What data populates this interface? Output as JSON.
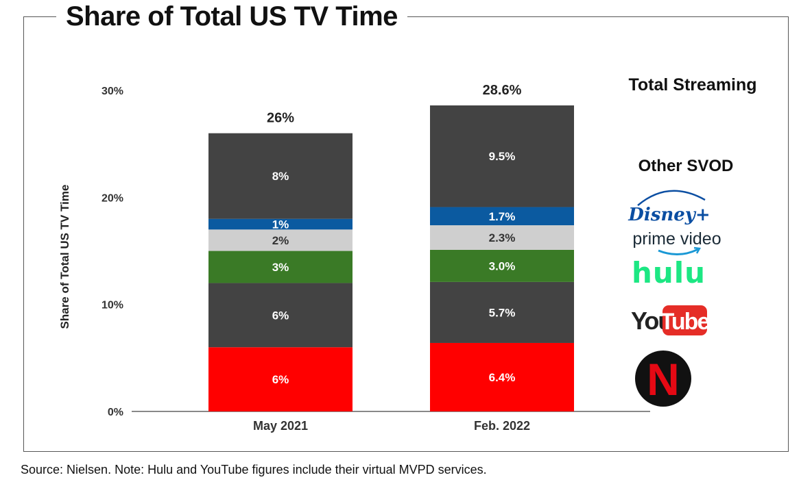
{
  "title": "Share of Total US TV Time",
  "source_note": "Source: Nielsen. Note: Hulu and YouTube figures include their virtual MVPD services.",
  "legend": {
    "header": "Total Streaming",
    "other_svod": "Other SVOD",
    "disney": "Disney+",
    "prime": "prime video",
    "hulu": "hulu",
    "youtube_you": "You",
    "youtube_tube": "Tube",
    "netflix": "N"
  },
  "chart_data": {
    "type": "bar",
    "stacked": true,
    "title": "Share of Total US TV Time",
    "xlabel": "",
    "ylabel": "Share of Total US TV Time",
    "ylim": [
      0,
      30
    ],
    "yticks": [
      0,
      10,
      20,
      30
    ],
    "ytick_labels": [
      "0%",
      "10%",
      "20%",
      "30%"
    ],
    "categories": [
      "May 2021",
      "Feb. 2022"
    ],
    "totals": [
      26,
      28.6
    ],
    "total_labels": [
      "26%",
      "28.6%"
    ],
    "series": [
      {
        "name": "Netflix",
        "color": "#ff0000",
        "label_color": "#ffffff",
        "values": [
          6,
          6.4
        ],
        "labels": [
          "6%",
          "6.4%"
        ]
      },
      {
        "name": "YouTube",
        "color": "#434343",
        "label_color": "#ffffff",
        "values": [
          6,
          5.7
        ],
        "labels": [
          "6%",
          "5.7%"
        ]
      },
      {
        "name": "Hulu",
        "color": "#3a7a26",
        "label_color": "#ffffff",
        "values": [
          3,
          3.0
        ],
        "labels": [
          "3%",
          "3.0%"
        ]
      },
      {
        "name": "Prime Video",
        "color": "#cfcfcf",
        "label_color": "#333333",
        "values": [
          2,
          2.3
        ],
        "labels": [
          "2%",
          "2.3%"
        ]
      },
      {
        "name": "Disney+",
        "color": "#0b5aa0",
        "label_color": "#ffffff",
        "values": [
          1,
          1.7
        ],
        "labels": [
          "1%",
          "1.7%"
        ]
      },
      {
        "name": "Other SVOD",
        "color": "#434343",
        "label_color": "#ffffff",
        "values": [
          8,
          9.5
        ],
        "labels": [
          "8%",
          "9.5%"
        ]
      }
    ]
  }
}
